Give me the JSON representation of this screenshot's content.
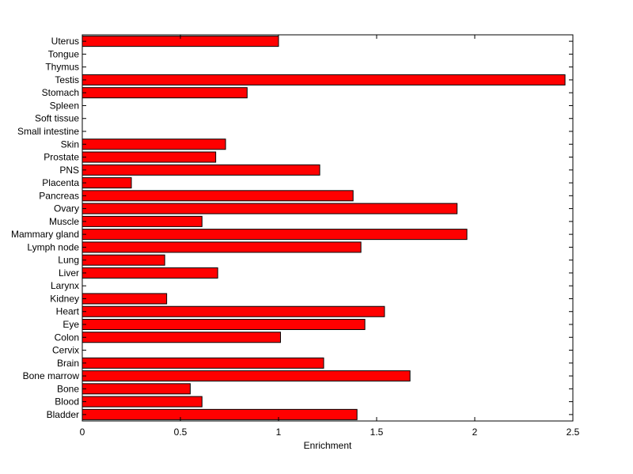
{
  "chart_data": {
    "type": "bar",
    "orientation": "horizontal",
    "categories": [
      "Bladder",
      "Blood",
      "Bone",
      "Bone marrow",
      "Brain",
      "Cervix",
      "Colon",
      "Eye",
      "Heart",
      "Kidney",
      "Larynx",
      "Liver",
      "Lung",
      "Lymph node",
      "Mammary gland",
      "Muscle",
      "Ovary",
      "Pancreas",
      "Placenta",
      "PNS",
      "Prostate",
      "Skin",
      "Small intestine",
      "Soft tissue",
      "Spleen",
      "Stomach",
      "Testis",
      "Thymus",
      "Tongue",
      "Uterus"
    ],
    "values": [
      1.4,
      0.61,
      0.55,
      1.67,
      1.23,
      0,
      1.01,
      1.44,
      1.54,
      0.43,
      0,
      0.69,
      0.42,
      1.42,
      1.96,
      0.61,
      1.91,
      1.38,
      0.25,
      1.21,
      0.68,
      0.73,
      0,
      0,
      0,
      0.84,
      2.46,
      0,
      0,
      1.0
    ],
    "title": "",
    "xlabel": "Enrichment",
    "ylabel": "",
    "xlim": [
      0,
      2.5
    ],
    "xticks": [
      "0",
      "0.5",
      "1",
      "1.5",
      "2",
      "2.5"
    ],
    "bar_color": "#ff0000",
    "grid": false,
    "legend": "none"
  }
}
